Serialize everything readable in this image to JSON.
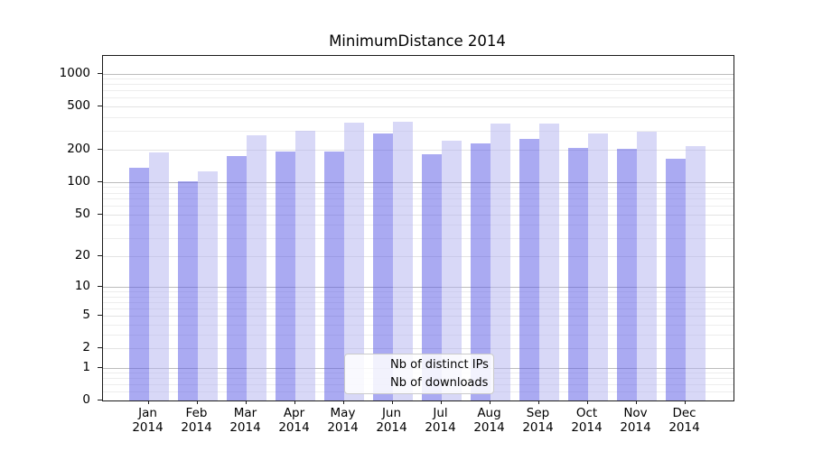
{
  "title": "MinimumDistance 2014",
  "chart_data": {
    "type": "bar",
    "title": "MinimumDistance 2014",
    "categories": [
      "Jan 2014",
      "Feb 2014",
      "Mar 2014",
      "Apr 2014",
      "May 2014",
      "Jun 2014",
      "Jul 2014",
      "Aug 2014",
      "Sep 2014",
      "Oct 2014",
      "Nov 2014",
      "Dec 2014"
    ],
    "series": [
      {
        "name": "Nb of distinct IPs",
        "color": "#5555e5",
        "fill_rgba": "rgba(85,85,229,0.5)",
        "values": [
          136,
          101,
          173,
          192,
          193,
          279,
          180,
          226,
          250,
          209,
          205,
          166
        ]
      },
      {
        "name": "Nb of downloads",
        "color": "#b1b1ef",
        "fill_rgba": "rgba(177,177,239,0.5)",
        "values": [
          190,
          126,
          270,
          300,
          355,
          360,
          240,
          350,
          345,
          284,
          290,
          215
        ]
      }
    ],
    "y_axis": {
      "scale": "log1p",
      "tick_values": [
        0,
        1,
        2,
        5,
        10,
        20,
        50,
        100,
        200,
        500,
        1000
      ],
      "tick_labels": [
        "0",
        "1",
        "2",
        "5",
        "10",
        "20",
        "50",
        "100",
        "200",
        "500",
        "1000"
      ],
      "range_max": 1460,
      "grid": true
    },
    "x_axis": {
      "tick_year_line": "2014"
    },
    "legend": {
      "position": "lower-center",
      "entries": [
        "Nb of distinct IPs",
        "Nb of downloads"
      ]
    }
  }
}
